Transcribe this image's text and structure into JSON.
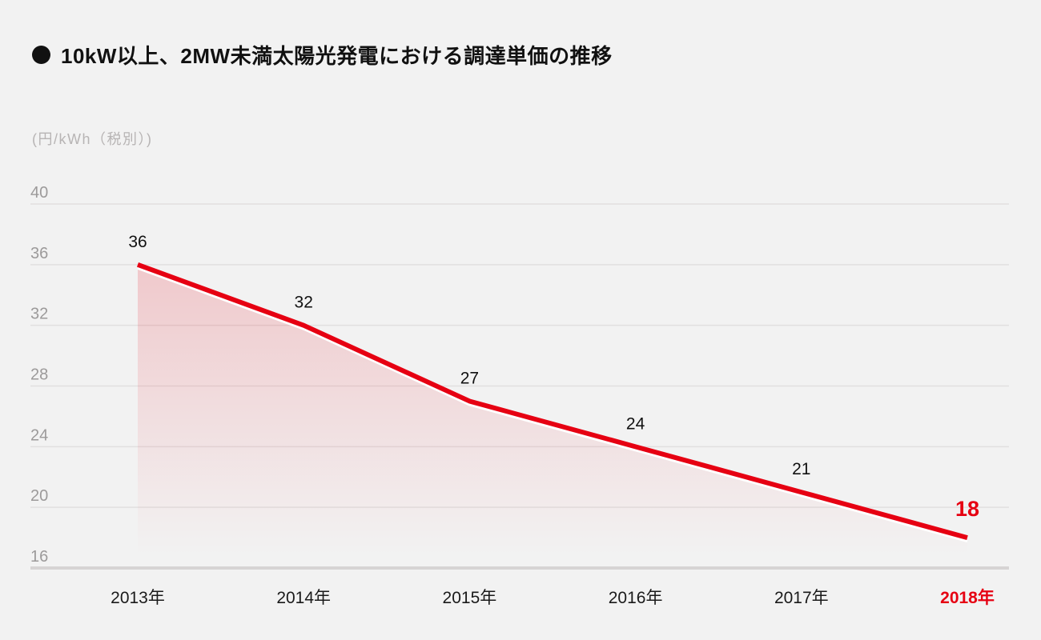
{
  "title": {
    "bullet": "circle-bullet",
    "text": "10kW以上、2MW未満太陽光発電における調達単価の推移"
  },
  "unit_label": "(円/kWh（税別）)",
  "chart_data": {
    "type": "area",
    "title": "10kW以上、2MW未満太陽光発電における調達単価の推移",
    "ylabel": "(円/kWh（税別）)",
    "categories": [
      "2013年",
      "2014年",
      "2015年",
      "2016年",
      "2017年",
      "2018年"
    ],
    "values": [
      36,
      32,
      27,
      24,
      21,
      18
    ],
    "value_labels": [
      "36",
      "32",
      "27",
      "24",
      "21",
      "18"
    ],
    "ytick_labels": [
      "40",
      "36",
      "32",
      "28",
      "24",
      "20",
      "16"
    ],
    "yticks": [
      40,
      36,
      32,
      28,
      24,
      20,
      16
    ],
    "ylim": [
      16,
      40
    ],
    "grid": true,
    "legend": "none",
    "highlight_last_index": 5,
    "colors": {
      "background": "#f2f2f2",
      "line": "#e60012",
      "line_underlay": "#ffffff",
      "area_top": "rgba(230,0,18,0.17)",
      "area_bottom": "rgba(230,0,18,0)",
      "gridline": "#e1dfdf",
      "baseline": "#d6d4d4",
      "tick_text": "#9c9a9a",
      "value_text": "#111111",
      "xlabel_text": "#1a1a1a",
      "highlight_text": "#e60012"
    }
  }
}
